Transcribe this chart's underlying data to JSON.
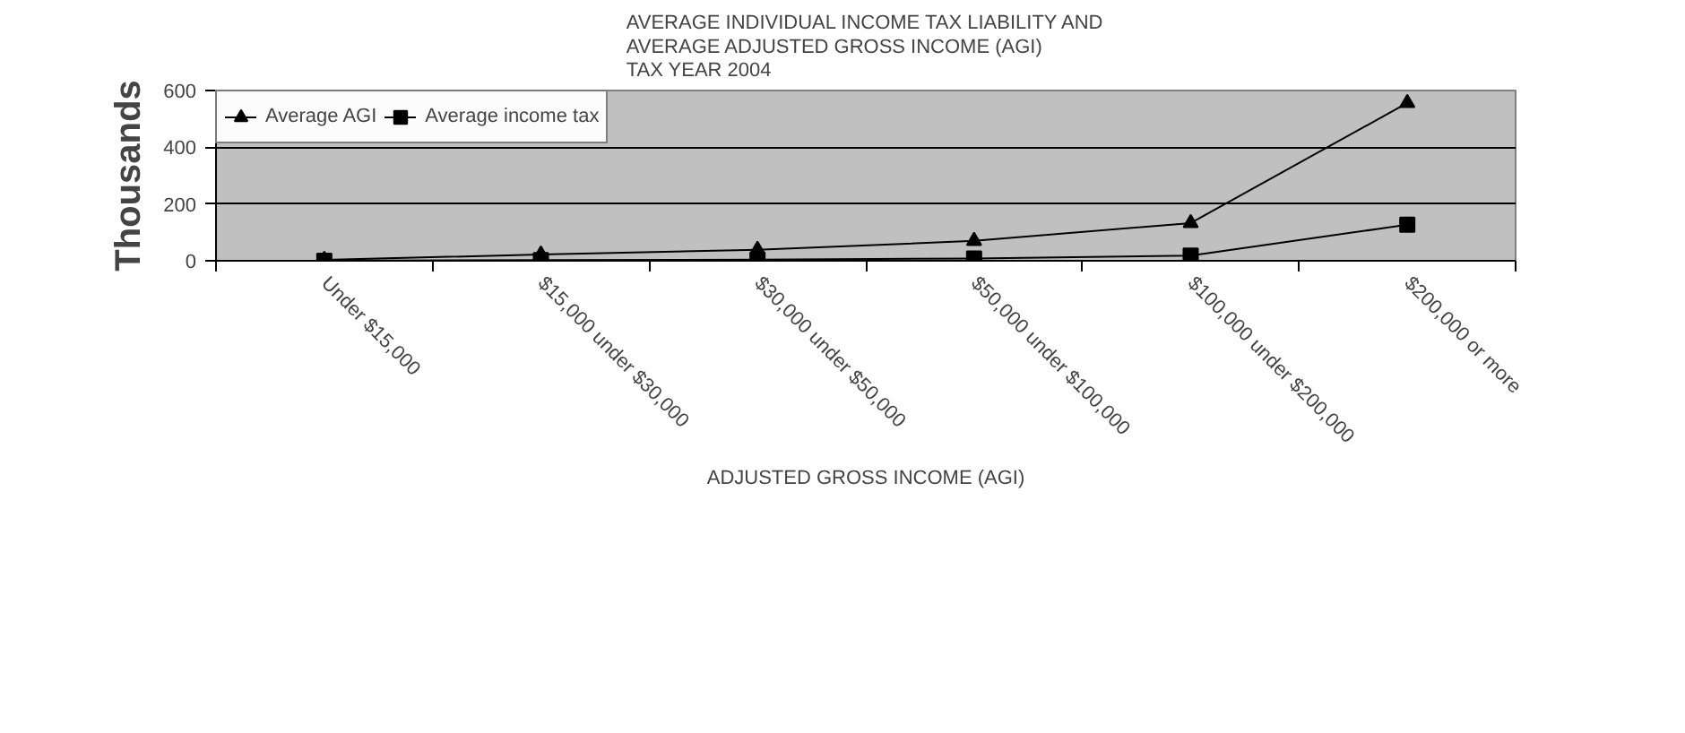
{
  "chart_data": {
    "type": "line",
    "title": "AVERAGE INDIVIDUAL INCOME TAX LIABILITY AND\nAVERAGE ADJUSTED GROSS INCOME (AGI)\nTAX YEAR 2004",
    "xlabel": "ADJUSTED GROSS INCOME (AGI)",
    "ylabel": "Thousands",
    "categories": [
      "Under $15,000",
      "$15,000 under $30,000",
      "$30,000 under $50,000",
      "$50,000 under $100,000",
      "$100,000 under $200,000",
      "$200,000 or more"
    ],
    "series": [
      {
        "name": "Average AGI",
        "color": "#000000",
        "marker": "triangle",
        "values": [
          3,
          22,
          39,
          70,
          133,
          556
        ]
      },
      {
        "name": "Average income tax",
        "color": "#000000",
        "marker": "square",
        "values": [
          0,
          2,
          4,
          8,
          18,
          127
        ]
      }
    ],
    "ylim": [
      0,
      600
    ],
    "yticks": [
      0,
      200,
      400,
      600
    ],
    "grid": "y",
    "legend": "top left"
  }
}
